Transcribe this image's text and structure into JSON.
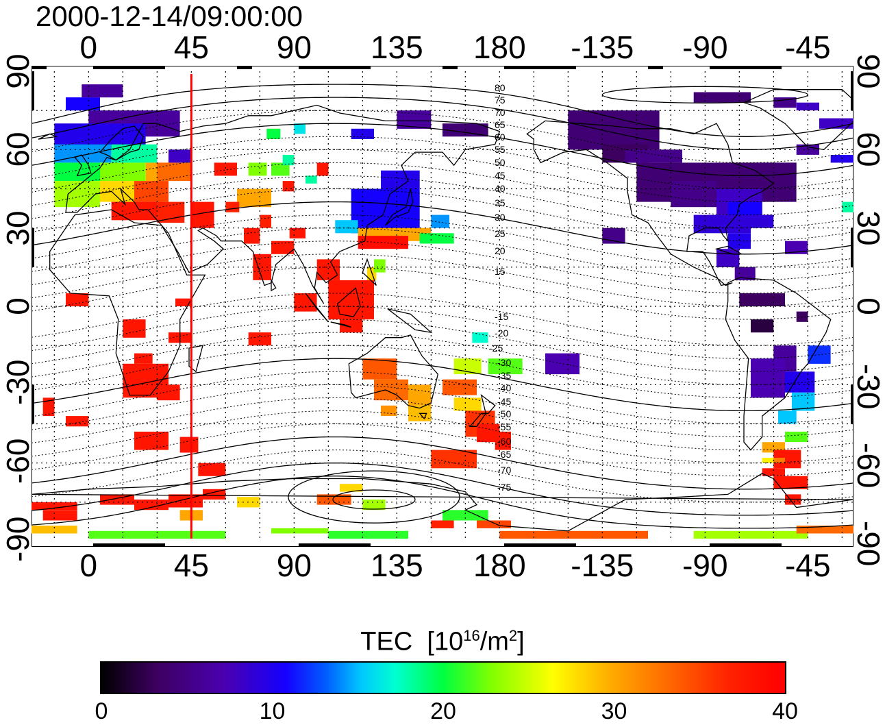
{
  "title": "2000-12-14/09:00:00",
  "top_lon_labels": [
    "0",
    "45",
    "90",
    "135",
    "180",
    "-135",
    "-90",
    "-45"
  ],
  "bottom_lon_labels": [
    "0",
    "45",
    "90",
    "135",
    "180",
    "-135",
    "-90",
    "-45"
  ],
  "left_lat_labels": [
    "90",
    "60",
    "30",
    "0",
    "-30",
    "-60",
    "-90"
  ],
  "right_lat_labels": [
    "90",
    "60",
    "30",
    "0",
    "-30",
    "-60",
    "-90"
  ],
  "contour_labels": [
    "80",
    "75",
    "70",
    "65",
    "60",
    "55",
    "50",
    "45",
    "40",
    "35",
    "30",
    "25",
    "20",
    "15",
    "-15",
    "-20",
    "-25",
    "-30",
    "-35",
    "-40",
    "-45",
    "-50",
    "-55",
    "-60",
    "-65",
    "-70",
    "-75"
  ],
  "colorbar": {
    "title": "TEC",
    "unit_prefix": "[10",
    "unit_exp": "16",
    "unit_mid": "/m",
    "unit_exp2": "2",
    "unit_suffix": "]",
    "ticks": [
      "0",
      "10",
      "20",
      "30",
      "40"
    ],
    "min": 0,
    "max": 40
  },
  "map": {
    "lon_range": [
      -25,
      335
    ],
    "lat_range": [
      -90,
      90
    ],
    "marker_longitude": 45,
    "marker_color": "#ff0000",
    "grid": true
  }
}
